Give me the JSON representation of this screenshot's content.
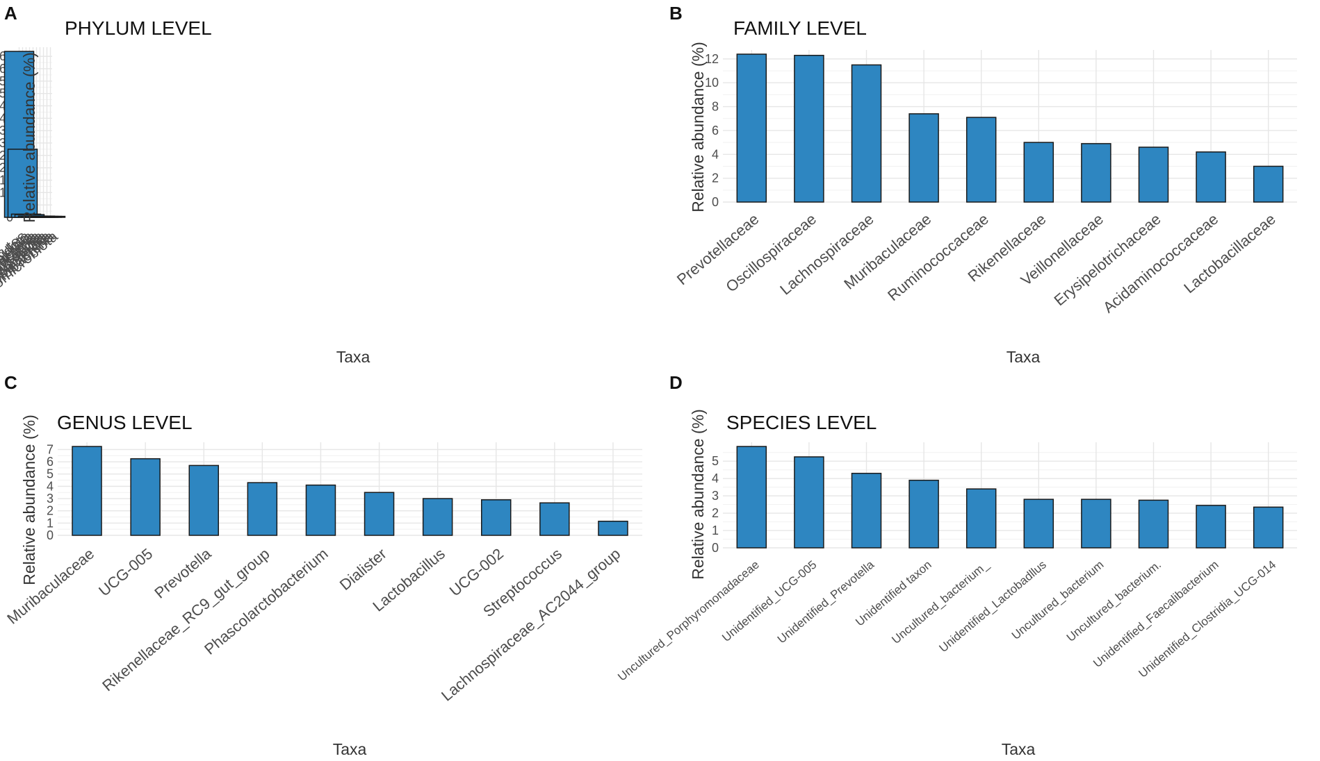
{
  "figure": {
    "bar_color": "#2E86C1",
    "bar_outline": "#1A1A1A",
    "grid_color": "#E6E6E6"
  },
  "chart_data": [
    {
      "panel": "A",
      "type": "bar",
      "title": "PHYLUM LEVEL",
      "xlabel": "Taxa",
      "ylabel": "Relative abundance (%)",
      "categories": [
        "Firmicutes",
        "Bacteroidota",
        "Spirochaetota",
        "Proteobacteria",
        "Planctomycetota",
        "Actinobacteriota",
        "Euryarchaeota",
        "Desulfobacterota",
        "Cyanobacteria",
        "Verrucomicrobiota"
      ],
      "values": [
        67,
        27.5,
        1.3,
        1.1,
        0.5,
        0.5,
        0.5,
        0.4,
        0.4,
        0.4
      ],
      "ylim": [
        0,
        67
      ],
      "yticks": [
        0,
        5,
        10,
        15,
        20,
        25,
        30,
        35,
        40,
        45,
        50,
        55,
        60,
        65
      ],
      "grid": true
    },
    {
      "panel": "B",
      "type": "bar",
      "title": "FAMILY LEVEL",
      "xlabel": "Taxa",
      "ylabel": "Relative abundance (%)",
      "categories": [
        "Prevotellaceae",
        "Oscillospiraceae",
        "Lachnospiraceae",
        "Muribaculaceae",
        "Ruminococcaceae",
        "Rikenellaceae",
        "Veillonellaceae",
        "Erysipelotrichaceae",
        "Acidaminococcaceae",
        "Lactobacillaceae"
      ],
      "values": [
        12.4,
        12.3,
        11.5,
        7.4,
        7.1,
        5.0,
        4.9,
        4.6,
        4.2,
        3.0
      ],
      "ylim": [
        0,
        12.4
      ],
      "yticks": [
        0,
        2,
        4,
        6,
        8,
        10,
        12
      ],
      "grid": true
    },
    {
      "panel": "C",
      "type": "bar",
      "title": "GENUS LEVEL",
      "xlabel": "Taxa",
      "ylabel": "Relative abundance (%)",
      "categories": [
        "Muribaculaceae",
        "UCG-005",
        "Prevotella",
        "Rikenellaceae_RC9_gut_group",
        "Phascolarctobacterium",
        "Dialister",
        "Lactobacillus",
        "UCG-002",
        "Streptococcus",
        "Lachnospiraceae_AC2044_group"
      ],
      "values": [
        7.25,
        6.25,
        5.7,
        4.3,
        4.1,
        3.5,
        3.0,
        2.9,
        2.65,
        1.15
      ],
      "ylim": [
        0,
        7.25
      ],
      "yticks": [
        0,
        1,
        2,
        3,
        4,
        5,
        6,
        7
      ],
      "grid": true
    },
    {
      "panel": "D",
      "type": "bar",
      "title": "SPECIES LEVEL",
      "xlabel": "Taxa",
      "ylabel": "Relative abundance (%)",
      "categories": [
        "Uncultured_Porphyromonadaceae",
        "Unidentified_UCG-005",
        "Unidentified_Prevotella",
        "Unidentified taxon",
        "Uncultured_bacterium_",
        "Unidentified_Lactobadllus",
        "Uncultured_bacterium",
        "Uncultured_bacterium.",
        "Unidentified_Faecalibacterium",
        "Unidentified_Clostridia_UCG-014"
      ],
      "values": [
        5.85,
        5.25,
        4.3,
        3.9,
        3.4,
        2.8,
        2.8,
        2.75,
        2.45,
        2.35
      ],
      "ylim": [
        0,
        5.85
      ],
      "yticks": [
        0,
        1,
        2,
        3,
        4,
        5
      ],
      "grid": true
    }
  ]
}
